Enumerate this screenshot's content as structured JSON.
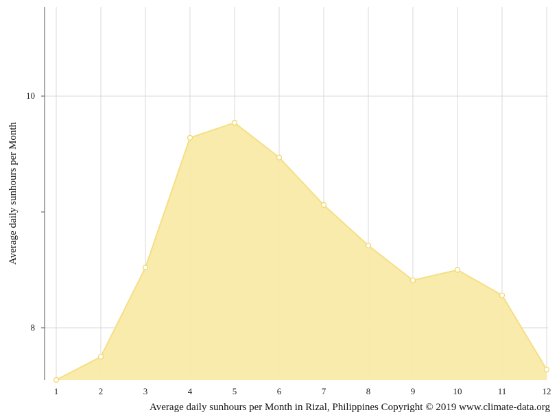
{
  "chart_data": {
    "type": "area",
    "x": [
      1,
      2,
      3,
      4,
      5,
      6,
      7,
      8,
      9,
      10,
      11,
      12
    ],
    "categories": [
      "1",
      "2",
      "3",
      "4",
      "5",
      "6",
      "7",
      "8",
      "9",
      "10",
      "11",
      "12"
    ],
    "series": [
      {
        "values": [
          7.55,
          7.75,
          8.52,
          9.64,
          9.77,
          9.47,
          9.06,
          8.71,
          8.41,
          8.5,
          8.28,
          7.64
        ],
        "color": "#f9eaa6",
        "line_color": "#f5df84",
        "marker_color": "#ffffff"
      }
    ],
    "title": "",
    "xlabel": "Average daily sunhours per Month in Rizal, Philippines Copyright © 2019 www.climate-data.org",
    "ylabel": "Average daily sunhours per Month",
    "yticks": [
      8,
      10
    ],
    "ylim": [
      7.55,
      10.77
    ],
    "grid": true,
    "legend": "none"
  }
}
